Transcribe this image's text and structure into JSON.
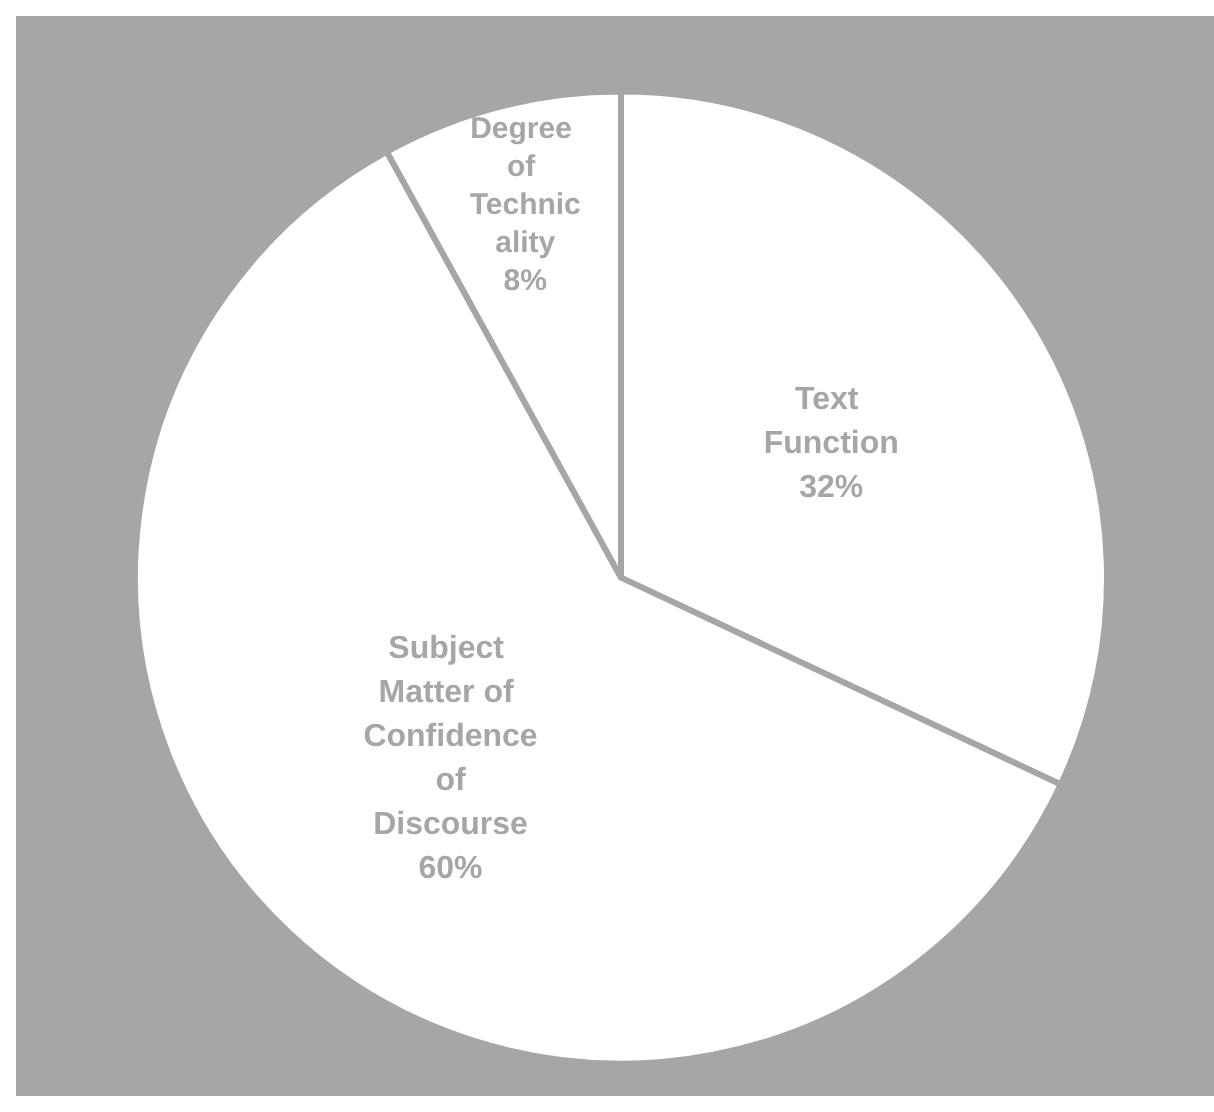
{
  "chart_data": {
    "type": "pie",
    "categories": [
      "Text Function",
      "Subject Matter of Confidence of Discourse",
      "Degree of Technicality"
    ],
    "values": [
      32,
      60,
      8
    ],
    "colors": [
      "#ffffff",
      "#ffffff",
      "#ffffff"
    ],
    "value_labels": [
      "32%",
      "60%",
      "8%"
    ],
    "legend": false
  }
}
